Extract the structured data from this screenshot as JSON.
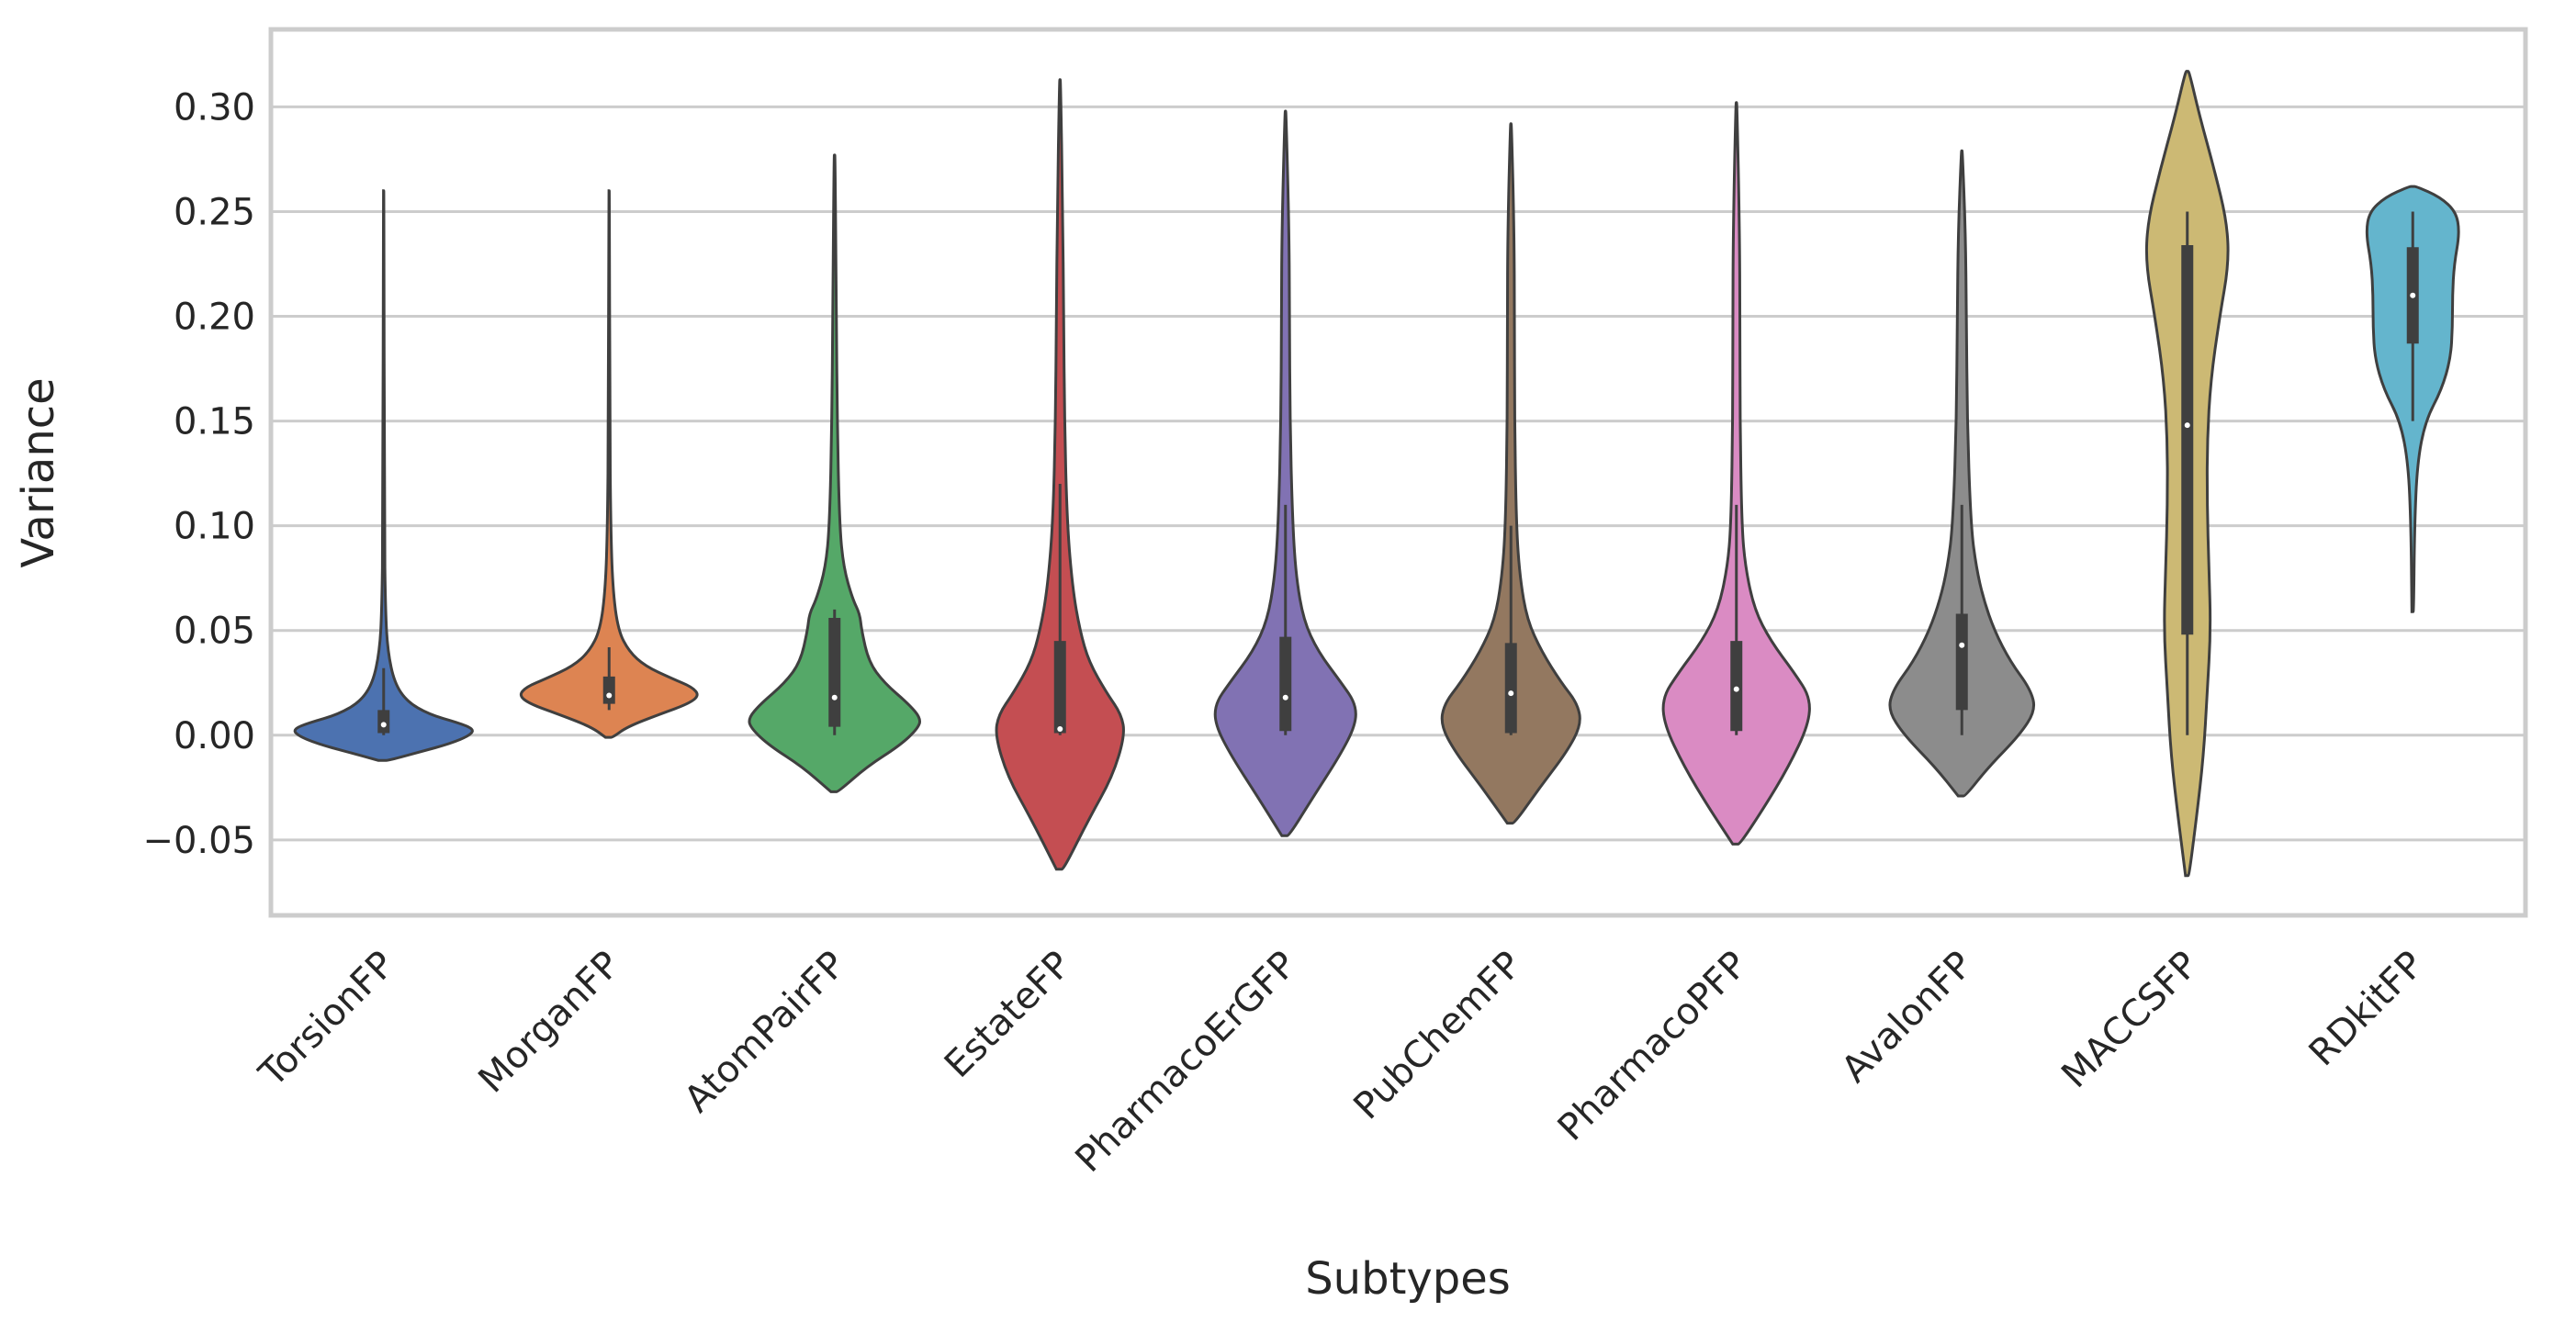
{
  "chart_data": {
    "type": "violin",
    "xlabel": "Subtypes",
    "ylabel": "Variance",
    "ylim": [
      -0.086,
      0.337
    ],
    "yticks": [
      -0.05,
      0.0,
      0.05,
      0.1,
      0.15,
      0.2,
      0.25,
      0.3
    ],
    "ytick_labels": [
      "−0.05",
      "0.00",
      "0.05",
      "0.10",
      "0.15",
      "0.20",
      "0.25",
      "0.30"
    ],
    "grid": "horizontal",
    "legend": "none",
    "categories": [
      "TorsionFP",
      "MorganFP",
      "AtomPairFP",
      "EstateFP",
      "PharmacoErGFP",
      "PubChemFP",
      "PharmacoPFP",
      "AvalonFP",
      "MACCSFP",
      "RDkitFP"
    ],
    "series": [
      {
        "category": "TorsionFP",
        "color": "#4c72b0",
        "range": [
          -0.012,
          0.26
        ],
        "whisker": [
          0.0,
          0.032
        ],
        "iqr": [
          0.001,
          0.012
        ],
        "median": 0.005,
        "profile": [
          [
            -0.012,
            0.06
          ],
          [
            -0.008,
            0.4
          ],
          [
            -0.004,
            0.74
          ],
          [
            0.0,
            0.96
          ],
          [
            0.003,
            1.0
          ],
          [
            0.006,
            0.82
          ],
          [
            0.01,
            0.5
          ],
          [
            0.016,
            0.26
          ],
          [
            0.025,
            0.12
          ],
          [
            0.04,
            0.045
          ],
          [
            0.06,
            0.02
          ],
          [
            0.1,
            0.008
          ],
          [
            0.26,
            0.003
          ]
        ]
      },
      {
        "category": "MorganFP",
        "color": "#dd8452",
        "range": [
          -0.001,
          0.26
        ],
        "whisker": [
          0.012,
          0.042
        ],
        "iqr": [
          0.015,
          0.028
        ],
        "median": 0.019,
        "profile": [
          [
            -0.001,
            0.04
          ],
          [
            0.004,
            0.2
          ],
          [
            0.01,
            0.56
          ],
          [
            0.015,
            0.88
          ],
          [
            0.019,
            1.0
          ],
          [
            0.023,
            0.92
          ],
          [
            0.027,
            0.7
          ],
          [
            0.033,
            0.4
          ],
          [
            0.04,
            0.22
          ],
          [
            0.05,
            0.1
          ],
          [
            0.07,
            0.04
          ],
          [
            0.1,
            0.018
          ],
          [
            0.15,
            0.008
          ],
          [
            0.26,
            0.003
          ]
        ]
      },
      {
        "category": "AtomPairFP",
        "color": "#55a868",
        "range": [
          -0.027,
          0.277
        ],
        "whisker": [
          0.0,
          0.06
        ],
        "iqr": [
          0.004,
          0.056
        ],
        "median": 0.018,
        "profile": [
          [
            -0.027,
            0.04
          ],
          [
            -0.015,
            0.36
          ],
          [
            -0.005,
            0.72
          ],
          [
            0.003,
            0.92
          ],
          [
            0.008,
            0.96
          ],
          [
            0.015,
            0.82
          ],
          [
            0.025,
            0.55
          ],
          [
            0.035,
            0.38
          ],
          [
            0.05,
            0.3
          ],
          [
            0.058,
            0.28
          ],
          [
            0.065,
            0.2
          ],
          [
            0.08,
            0.1
          ],
          [
            0.1,
            0.055
          ],
          [
            0.15,
            0.03
          ],
          [
            0.2,
            0.02
          ],
          [
            0.277,
            0.006
          ]
        ]
      },
      {
        "category": "EstateFP",
        "color": "#c44e52",
        "range": [
          -0.064,
          0.313
        ],
        "whisker": [
          0.0,
          0.12
        ],
        "iqr": [
          0.001,
          0.045
        ],
        "median": 0.003,
        "profile": [
          [
            -0.064,
            0.04
          ],
          [
            -0.04,
            0.32
          ],
          [
            -0.02,
            0.58
          ],
          [
            0.0,
            0.72
          ],
          [
            0.01,
            0.68
          ],
          [
            0.02,
            0.52
          ],
          [
            0.035,
            0.32
          ],
          [
            0.05,
            0.22
          ],
          [
            0.07,
            0.14
          ],
          [
            0.1,
            0.08
          ],
          [
            0.15,
            0.05
          ],
          [
            0.2,
            0.04
          ],
          [
            0.25,
            0.03
          ],
          [
            0.313,
            0.006
          ]
        ]
      },
      {
        "category": "PharmacoErGFP",
        "color": "#8172b3",
        "range": [
          -0.048,
          0.298
        ],
        "whisker": [
          0.0,
          0.11
        ],
        "iqr": [
          0.002,
          0.047
        ],
        "median": 0.018,
        "profile": [
          [
            -0.048,
            0.04
          ],
          [
            -0.03,
            0.3
          ],
          [
            -0.01,
            0.6
          ],
          [
            0.005,
            0.78
          ],
          [
            0.015,
            0.78
          ],
          [
            0.025,
            0.62
          ],
          [
            0.04,
            0.36
          ],
          [
            0.055,
            0.2
          ],
          [
            0.075,
            0.12
          ],
          [
            0.1,
            0.08
          ],
          [
            0.15,
            0.05
          ],
          [
            0.2,
            0.045
          ],
          [
            0.24,
            0.04
          ],
          [
            0.298,
            0.006
          ]
        ]
      },
      {
        "category": "PubChemFP",
        "color": "#937860",
        "range": [
          -0.042,
          0.292
        ],
        "whisker": [
          0.0,
          0.1
        ],
        "iqr": [
          0.001,
          0.044
        ],
        "median": 0.02,
        "profile": [
          [
            -0.042,
            0.04
          ],
          [
            -0.025,
            0.32
          ],
          [
            -0.008,
            0.62
          ],
          [
            0.005,
            0.78
          ],
          [
            0.015,
            0.74
          ],
          [
            0.025,
            0.56
          ],
          [
            0.04,
            0.34
          ],
          [
            0.055,
            0.18
          ],
          [
            0.075,
            0.1
          ],
          [
            0.1,
            0.06
          ],
          [
            0.15,
            0.04
          ],
          [
            0.2,
            0.04
          ],
          [
            0.24,
            0.035
          ],
          [
            0.292,
            0.006
          ]
        ]
      },
      {
        "category": "PharmacoPFP",
        "color": "#da8bc3",
        "range": [
          -0.052,
          0.302
        ],
        "whisker": [
          0.0,
          0.11
        ],
        "iqr": [
          0.002,
          0.045
        ],
        "median": 0.022,
        "profile": [
          [
            -0.052,
            0.04
          ],
          [
            -0.035,
            0.3
          ],
          [
            -0.015,
            0.58
          ],
          [
            0.005,
            0.8
          ],
          [
            0.018,
            0.82
          ],
          [
            0.03,
            0.64
          ],
          [
            0.045,
            0.38
          ],
          [
            0.06,
            0.2
          ],
          [
            0.08,
            0.1
          ],
          [
            0.1,
            0.06
          ],
          [
            0.15,
            0.04
          ],
          [
            0.2,
            0.04
          ],
          [
            0.24,
            0.035
          ],
          [
            0.302,
            0.006
          ]
        ]
      },
      {
        "category": "AvalonFP",
        "color": "#8c8c8c",
        "range": [
          -0.029,
          0.279
        ],
        "whisker": [
          0.0,
          0.11
        ],
        "iqr": [
          0.012,
          0.058
        ],
        "median": 0.043,
        "profile": [
          [
            -0.029,
            0.04
          ],
          [
            -0.015,
            0.3
          ],
          [
            0.0,
            0.64
          ],
          [
            0.012,
            0.82
          ],
          [
            0.022,
            0.76
          ],
          [
            0.035,
            0.54
          ],
          [
            0.05,
            0.36
          ],
          [
            0.065,
            0.24
          ],
          [
            0.08,
            0.16
          ],
          [
            0.1,
            0.1
          ],
          [
            0.15,
            0.06
          ],
          [
            0.2,
            0.05
          ],
          [
            0.24,
            0.04
          ],
          [
            0.279,
            0.006
          ]
        ]
      },
      {
        "category": "MACCSFP",
        "color": "#ccb974",
        "range": [
          -0.067,
          0.317
        ],
        "whisker": [
          0.0,
          0.25
        ],
        "iqr": [
          0.048,
          0.234
        ],
        "median": 0.148,
        "profile": [
          [
            -0.067,
            0.02
          ],
          [
            -0.04,
            0.1
          ],
          [
            -0.01,
            0.18
          ],
          [
            0.02,
            0.22
          ],
          [
            0.05,
            0.26
          ],
          [
            0.08,
            0.24
          ],
          [
            0.11,
            0.22
          ],
          [
            0.14,
            0.22
          ],
          [
            0.17,
            0.26
          ],
          [
            0.2,
            0.36
          ],
          [
            0.225,
            0.46
          ],
          [
            0.245,
            0.44
          ],
          [
            0.27,
            0.3
          ],
          [
            0.295,
            0.14
          ],
          [
            0.317,
            0.02
          ]
        ]
      },
      {
        "category": "RDkitFP",
        "color": "#64b5cd",
        "range": [
          0.059,
          0.262
        ],
        "whisker": [
          0.15,
          0.25
        ],
        "iqr": [
          0.187,
          0.233
        ],
        "median": 0.21,
        "profile": [
          [
            0.059,
            0.01
          ],
          [
            0.1,
            0.02
          ],
          [
            0.13,
            0.05
          ],
          [
            0.15,
            0.14
          ],
          [
            0.165,
            0.32
          ],
          [
            0.18,
            0.42
          ],
          [
            0.195,
            0.44
          ],
          [
            0.21,
            0.44
          ],
          [
            0.225,
            0.46
          ],
          [
            0.24,
            0.52
          ],
          [
            0.25,
            0.48
          ],
          [
            0.257,
            0.3
          ],
          [
            0.262,
            0.04
          ]
        ]
      }
    ]
  }
}
